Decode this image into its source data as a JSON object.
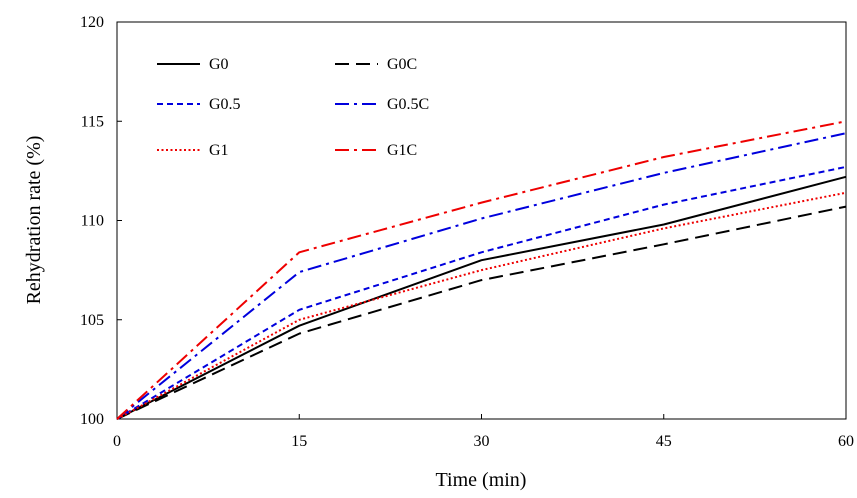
{
  "chart_data": {
    "type": "line",
    "xlabel": "Time (min)",
    "ylabel": "Rehydration  rate (%)",
    "xlim": [
      0,
      60
    ],
    "ylim": [
      100,
      120
    ],
    "xticks": [
      0,
      15,
      30,
      45,
      60
    ],
    "yticks": [
      100,
      105,
      110,
      115,
      120
    ],
    "x": [
      0,
      15,
      30,
      45,
      60
    ],
    "grid": false,
    "legend_position": "top-left",
    "series": [
      {
        "name": "G0",
        "values": [
          100,
          104.7,
          108.0,
          109.8,
          112.2
        ],
        "color": "#000000",
        "dash": "solid"
      },
      {
        "name": "G0C",
        "values": [
          100,
          104.3,
          107.0,
          108.8,
          110.7
        ],
        "color": "#000000",
        "dash": "longdash"
      },
      {
        "name": "G0.5",
        "values": [
          100,
          105.5,
          108.4,
          110.8,
          112.7
        ],
        "color": "#0000dd",
        "dash": "dash"
      },
      {
        "name": "G0.5C",
        "values": [
          100,
          107.4,
          110.1,
          112.4,
          114.4
        ],
        "color": "#0000dd",
        "dash": "dashdot"
      },
      {
        "name": "G1",
        "values": [
          100,
          105.0,
          107.5,
          109.6,
          111.4
        ],
        "color": "#ee0000",
        "dash": "dot"
      },
      {
        "name": "G1C",
        "values": [
          100,
          108.4,
          110.9,
          113.2,
          115.0
        ],
        "color": "#ee0000",
        "dash": "dashdot"
      }
    ]
  }
}
